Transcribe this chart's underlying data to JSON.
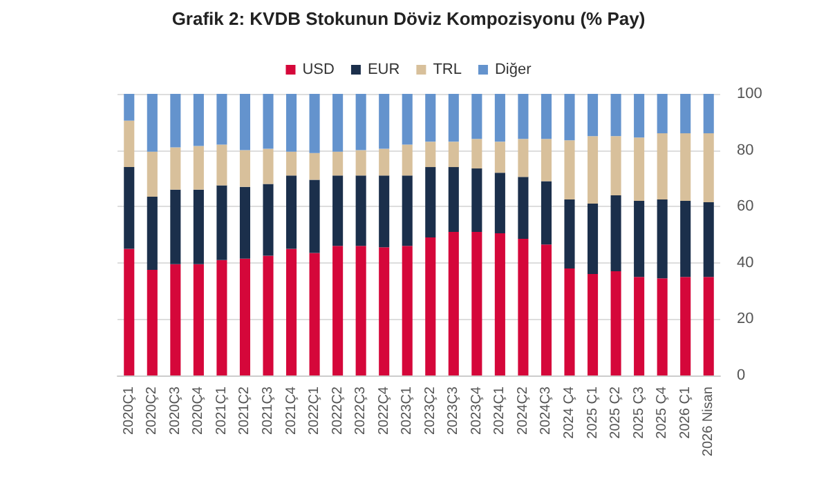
{
  "chart_data": {
    "type": "bar",
    "title": "Grafik 2: KVDB Stokunun Döviz Kompozisyonu (% Pay)",
    "stacked": true,
    "grid": "y",
    "legend": "top",
    "categories": [
      "2020Ç1",
      "2020Ç2",
      "2020Ç3",
      "2020Ç4",
      "2021Ç1",
      "2021Ç2",
      "2021Ç3",
      "2021Ç4",
      "2022Ç1",
      "2022Ç2",
      "2022Ç3",
      "2022Ç4",
      "2023Ç1",
      "2023Ç2",
      "2023Ç3",
      "2023Ç4",
      "2024Ç1",
      "2024Ç2",
      "2024Ç3",
      "2024 Ç4",
      "2025 Ç1",
      "2025 Ç2",
      "2025 Ç3",
      "2025 Ç4",
      "2026 Ç1",
      "2026 Nisan"
    ],
    "series": [
      {
        "name": "USD",
        "color": "#d5073a",
        "values": [
          45,
          37.5,
          39.5,
          39.5,
          41,
          41.5,
          42.5,
          45,
          43.5,
          46,
          46,
          45.5,
          46,
          49,
          51,
          51,
          50.5,
          48.5,
          46.5,
          38,
          36,
          37,
          35,
          34.5,
          35,
          35
        ]
      },
      {
        "name": "EUR",
        "color": "#1b2f4b",
        "values": [
          29,
          26,
          26.5,
          26.5,
          26.5,
          25.5,
          25.5,
          26,
          26,
          25,
          25,
          25.5,
          25,
          25,
          23,
          22.5,
          21.5,
          22,
          22.5,
          24.5,
          25,
          27,
          27,
          28,
          27,
          26.5
        ]
      },
      {
        "name": "TRL",
        "color": "#d8c09b",
        "values": [
          16.5,
          16,
          15,
          15.5,
          14.5,
          13,
          12.5,
          8.5,
          9.5,
          8.5,
          9,
          9.5,
          11,
          9,
          9,
          10.5,
          11,
          13.5,
          15,
          21,
          24,
          21,
          22.5,
          23.5,
          24,
          24.5
        ]
      },
      {
        "name": "Diğer",
        "color": "#6493cd",
        "values": [
          9.5,
          20.5,
          19,
          18.5,
          18,
          20,
          19.5,
          20.5,
          21,
          20.5,
          20,
          19.5,
          18,
          17,
          17,
          16,
          17,
          16,
          16,
          16.5,
          15,
          15,
          15.5,
          14,
          14,
          14
        ]
      }
    ],
    "ylim": [
      0,
      100
    ],
    "yticks": [
      0,
      20,
      40,
      60,
      80,
      100
    ]
  }
}
